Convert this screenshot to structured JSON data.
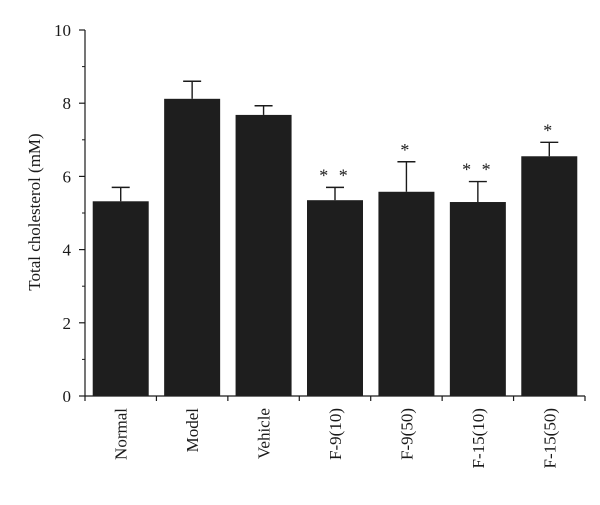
{
  "chart_data": {
    "type": "bar",
    "ylabel": "Total cholesterol (mM)",
    "ylim": [
      0,
      10
    ],
    "yticks": [
      0,
      2,
      4,
      6,
      8,
      10
    ],
    "ytick_labels": [
      "0",
      "2",
      "4",
      "6",
      "8",
      "10"
    ],
    "categories": [
      "Normal",
      "Model",
      "Vehicle",
      "F-9(10)",
      "F-9(50)",
      "F-15(10)",
      "F-15(50)"
    ],
    "values": [
      5.32,
      8.12,
      7.68,
      5.35,
      5.58,
      5.3,
      6.55
    ],
    "errors": [
      0.38,
      0.48,
      0.25,
      0.35,
      0.82,
      0.56,
      0.38
    ],
    "annotations": [
      "",
      "",
      "",
      "**",
      "*",
      "**",
      "*"
    ],
    "bar_color": "#1e1e1e",
    "grid": false,
    "legend": "none"
  }
}
